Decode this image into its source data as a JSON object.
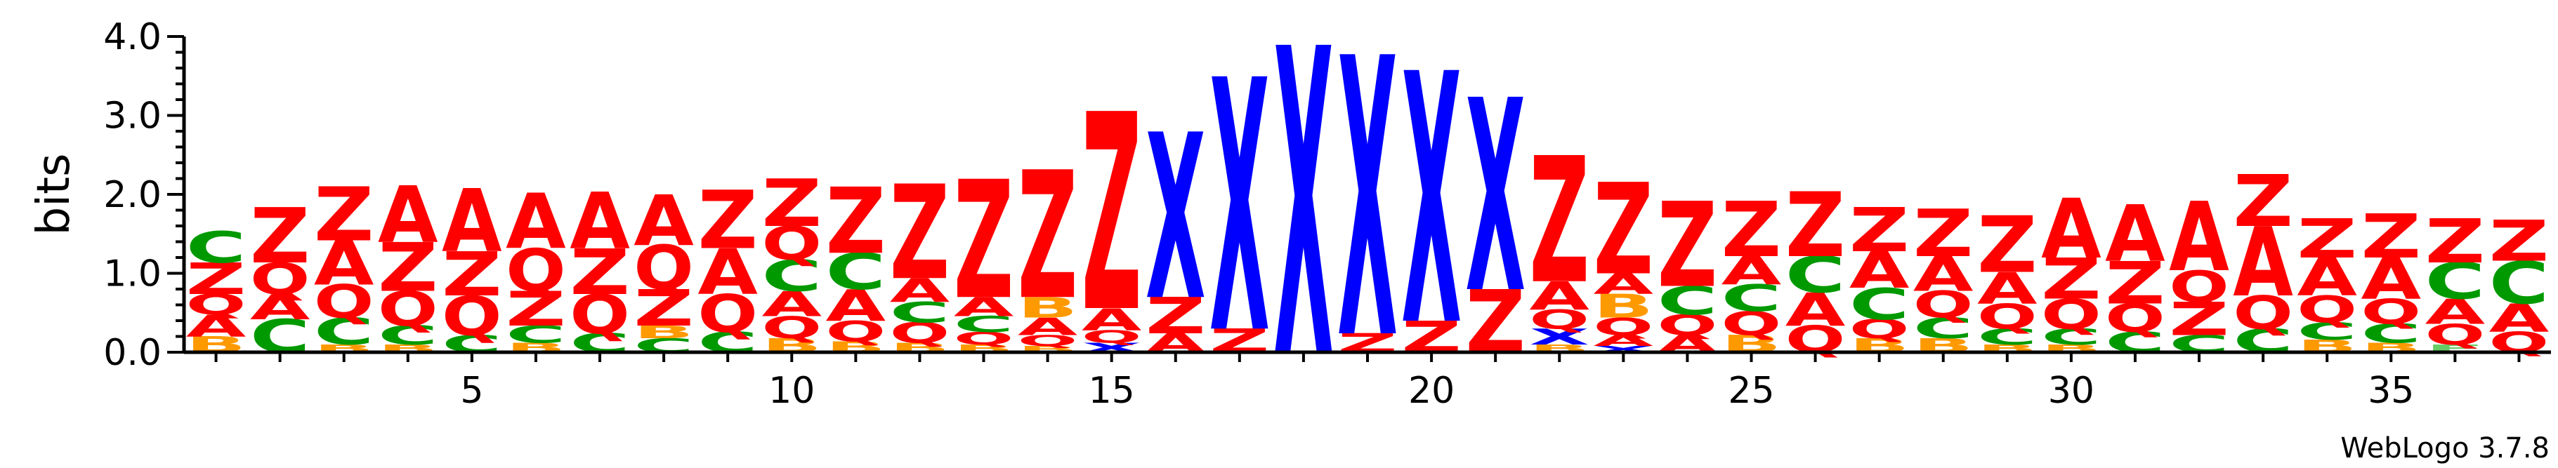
{
  "chart_data": {
    "type": "sequence-logo",
    "title": "",
    "xlabel": "",
    "ylabel": "bits",
    "ylim": [
      0,
      4.0
    ],
    "xlim": [
      0.5,
      37.5
    ],
    "y_ticks": [
      "0.0",
      "1.0",
      "2.0",
      "3.0",
      "4.0"
    ],
    "y_tick_values": [
      0,
      1,
      2,
      3,
      4
    ],
    "x_ticks": [
      "5",
      "10",
      "15",
      "20",
      "25",
      "30",
      "35"
    ],
    "x_tick_values": [
      5,
      10,
      15,
      20,
      25,
      30,
      35
    ],
    "colors": {
      "A": "#ff0000",
      "Q": "#ff0000",
      "Z": "#ff0000",
      "C": "#009900",
      "B": "#ff9900",
      "X": "#0000ff",
      "E": "#66cc66"
    },
    "positions": [
      {
        "pos": 1,
        "stack": [
          [
            "B",
            0.2
          ],
          [
            "A",
            0.28
          ],
          [
            "Q",
            0.26
          ],
          [
            "Z",
            0.4
          ],
          [
            "C",
            0.4
          ]
        ]
      },
      {
        "pos": 2,
        "stack": [
          [
            "C",
            0.42
          ],
          [
            "A",
            0.32
          ],
          [
            "Q",
            0.4
          ],
          [
            "Z",
            0.7
          ]
        ]
      },
      {
        "pos": 3,
        "stack": [
          [
            "B",
            0.1
          ],
          [
            "C",
            0.34
          ],
          [
            "Q",
            0.42
          ],
          [
            "A",
            0.56
          ],
          [
            "Z",
            0.68
          ]
        ]
      },
      {
        "pos": 4,
        "stack": [
          [
            "B",
            0.1
          ],
          [
            "C",
            0.24
          ],
          [
            "Q",
            0.44
          ],
          [
            "Z",
            0.62
          ],
          [
            "A",
            0.72
          ]
        ]
      },
      {
        "pos": 5,
        "stack": [
          [
            "C",
            0.22
          ],
          [
            "Q",
            0.5
          ],
          [
            "Z",
            0.56
          ],
          [
            "A",
            0.8
          ]
        ]
      },
      {
        "pos": 6,
        "stack": [
          [
            "B",
            0.12
          ],
          [
            "C",
            0.22
          ],
          [
            "Z",
            0.44
          ],
          [
            "Q",
            0.54
          ],
          [
            "A",
            0.7
          ]
        ]
      },
      {
        "pos": 7,
        "stack": [
          [
            "C",
            0.24
          ],
          [
            "Q",
            0.5
          ],
          [
            "Z",
            0.58
          ],
          [
            "A",
            0.72
          ]
        ]
      },
      {
        "pos": 8,
        "stack": [
          [
            "C",
            0.18
          ],
          [
            "B",
            0.16
          ],
          [
            "Z",
            0.46
          ],
          [
            "Q",
            0.56
          ],
          [
            "A",
            0.64
          ]
        ]
      },
      {
        "pos": 9,
        "stack": [
          [
            "C",
            0.26
          ],
          [
            "Q",
            0.48
          ],
          [
            "A",
            0.58
          ],
          [
            "Z",
            0.74
          ]
        ]
      },
      {
        "pos": 10,
        "stack": [
          [
            "B",
            0.18
          ],
          [
            "Q",
            0.28
          ],
          [
            "A",
            0.32
          ],
          [
            "C",
            0.4
          ],
          [
            "Q",
            0.42
          ],
          [
            "Z",
            0.6
          ]
        ]
      },
      {
        "pos": 11,
        "stack": [
          [
            "B",
            0.14
          ],
          [
            "Q",
            0.26
          ],
          [
            "A",
            0.4
          ],
          [
            "C",
            0.46
          ],
          [
            "Z",
            0.84
          ]
        ]
      },
      {
        "pos": 12,
        "stack": [
          [
            "B",
            0.12
          ],
          [
            "Q",
            0.26
          ],
          [
            "C",
            0.26
          ],
          [
            "A",
            0.3
          ],
          [
            "Z",
            1.2
          ]
        ]
      },
      {
        "pos": 13,
        "stack": [
          [
            "B",
            0.1
          ],
          [
            "Q",
            0.16
          ],
          [
            "C",
            0.2
          ],
          [
            "A",
            0.24
          ],
          [
            "Z",
            1.5
          ]
        ]
      },
      {
        "pos": 14,
        "stack": [
          [
            "B",
            0.08
          ],
          [
            "Q",
            0.14
          ],
          [
            "A",
            0.22
          ],
          [
            "B",
            0.26
          ],
          [
            "Z",
            1.62
          ]
        ]
      },
      {
        "pos": 15,
        "stack": [
          [
            "X",
            0.12
          ],
          [
            "Q",
            0.16
          ],
          [
            "A",
            0.28
          ],
          [
            "Z",
            2.5
          ]
        ]
      },
      {
        "pos": 16,
        "stack": [
          [
            "A",
            0.24
          ],
          [
            "Z",
            0.46
          ],
          [
            "X",
            2.1
          ]
        ]
      },
      {
        "pos": 17,
        "stack": [
          [
            "Z",
            0.3
          ],
          [
            "X",
            3.2
          ]
        ]
      },
      {
        "pos": 18,
        "stack": [
          [
            "X",
            3.9
          ]
        ]
      },
      {
        "pos": 19,
        "stack": [
          [
            "Z",
            0.24
          ],
          [
            "X",
            3.54
          ]
        ]
      },
      {
        "pos": 20,
        "stack": [
          [
            "Z",
            0.4
          ],
          [
            "X",
            3.18
          ]
        ]
      },
      {
        "pos": 21,
        "stack": [
          [
            "Z",
            0.8
          ],
          [
            "X",
            2.44
          ]
        ]
      },
      {
        "pos": 22,
        "stack": [
          [
            "B",
            0.1
          ],
          [
            "X",
            0.2
          ],
          [
            "Q",
            0.24
          ],
          [
            "A",
            0.36
          ],
          [
            "Z",
            1.6
          ]
        ]
      },
      {
        "pos": 23,
        "stack": [
          [
            "X",
            0.08
          ],
          [
            "A",
            0.14
          ],
          [
            "Q",
            0.22
          ],
          [
            "B",
            0.3
          ],
          [
            "A",
            0.26
          ],
          [
            "Z",
            1.16
          ]
        ]
      },
      {
        "pos": 24,
        "stack": [
          [
            "A",
            0.22
          ],
          [
            "Q",
            0.26
          ],
          [
            "C",
            0.36
          ],
          [
            "Z",
            1.08
          ]
        ]
      },
      {
        "pos": 25,
        "stack": [
          [
            "B",
            0.22
          ],
          [
            "Q",
            0.3
          ],
          [
            "C",
            0.34
          ],
          [
            "A",
            0.36
          ],
          [
            "Z",
            0.7
          ]
        ]
      },
      {
        "pos": 26,
        "stack": [
          [
            "Q",
            0.34
          ],
          [
            "A",
            0.42
          ],
          [
            "C",
            0.46
          ],
          [
            "Z",
            0.82
          ]
        ]
      },
      {
        "pos": 27,
        "stack": [
          [
            "B",
            0.18
          ],
          [
            "Q",
            0.24
          ],
          [
            "C",
            0.4
          ],
          [
            "A",
            0.46
          ],
          [
            "Z",
            0.56
          ]
        ]
      },
      {
        "pos": 28,
        "stack": [
          [
            "B",
            0.18
          ],
          [
            "C",
            0.26
          ],
          [
            "Q",
            0.34
          ],
          [
            "A",
            0.44
          ],
          [
            "Z",
            0.6
          ]
        ]
      },
      {
        "pos": 29,
        "stack": [
          [
            "B",
            0.1
          ],
          [
            "C",
            0.2
          ],
          [
            "Q",
            0.32
          ],
          [
            "A",
            0.4
          ],
          [
            "Z",
            0.72
          ]
        ]
      },
      {
        "pos": 30,
        "stack": [
          [
            "B",
            0.1
          ],
          [
            "C",
            0.2
          ],
          [
            "Q",
            0.38
          ],
          [
            "Z",
            0.52
          ],
          [
            "A",
            0.76
          ]
        ]
      },
      {
        "pos": 31,
        "stack": [
          [
            "C",
            0.26
          ],
          [
            "Q",
            0.36
          ],
          [
            "Z",
            0.54
          ],
          [
            "A",
            0.72
          ]
        ]
      },
      {
        "pos": 32,
        "stack": [
          [
            "C",
            0.22
          ],
          [
            "Z",
            0.42
          ],
          [
            "Q",
            0.4
          ],
          [
            "A",
            0.88
          ]
        ]
      },
      {
        "pos": 33,
        "stack": [
          [
            "C",
            0.3
          ],
          [
            "Q",
            0.42
          ],
          [
            "A",
            0.88
          ],
          [
            "Z",
            0.66
          ]
        ]
      },
      {
        "pos": 34,
        "stack": [
          [
            "B",
            0.16
          ],
          [
            "C",
            0.22
          ],
          [
            "Q",
            0.34
          ],
          [
            "A",
            0.48
          ],
          [
            "Z",
            0.5
          ]
        ]
      },
      {
        "pos": 35,
        "stack": [
          [
            "B",
            0.12
          ],
          [
            "C",
            0.24
          ],
          [
            "Q",
            0.32
          ],
          [
            "A",
            0.52
          ],
          [
            "Z",
            0.56
          ]
        ]
      },
      {
        "pos": 36,
        "stack": [
          [
            "E",
            0.1
          ],
          [
            "Q",
            0.26
          ],
          [
            "A",
            0.32
          ],
          [
            "C",
            0.46
          ],
          [
            "Z",
            0.56
          ]
        ]
      },
      {
        "pos": 37,
        "stack": [
          [
            "Q",
            0.26
          ],
          [
            "A",
            0.36
          ],
          [
            "C",
            0.54
          ],
          [
            "Z",
            0.52
          ]
        ]
      }
    ]
  },
  "footer": {
    "credit": "WebLogo 3.7.8"
  }
}
